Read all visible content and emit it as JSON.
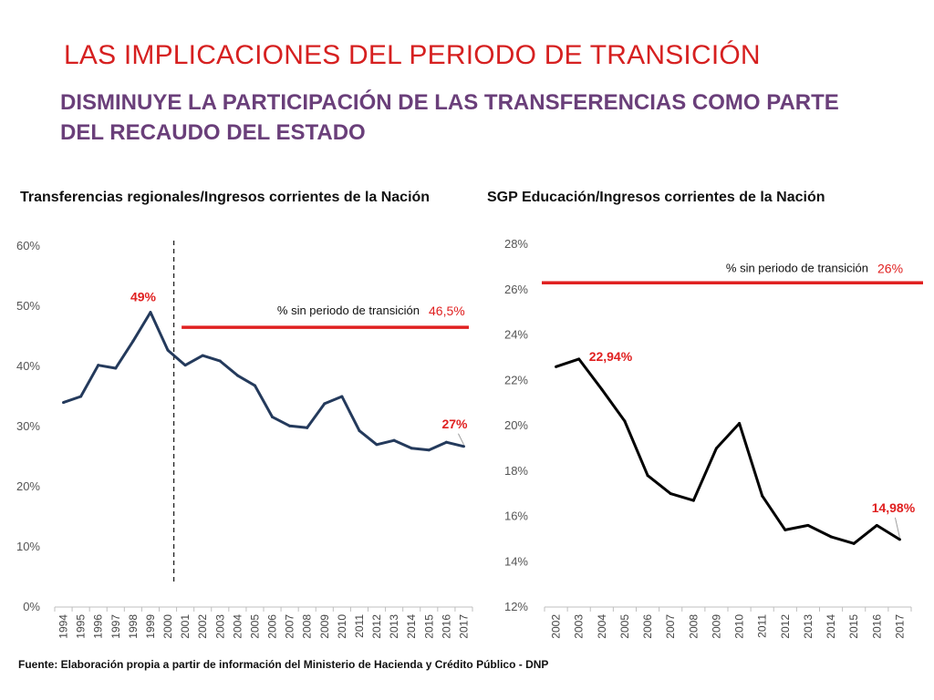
{
  "slide": {
    "title": "LAS IMPLICACIONES DEL PERIODO DE TRANSICIÓN",
    "subtitle": "DISMINUYE LA PARTICIPACIÓN DE LAS TRANSFERENCIAS COMO PARTE DEL RECAUDO DEL ESTADO",
    "source": "Fuente: Elaboración propia a partir de información del Ministerio de Hacienda y Crédito Público - DNP",
    "colors": {
      "title": "#d62020",
      "subtitle": "#6a3f7a",
      "reference_line": "#e02020"
    }
  },
  "chart_data": [
    {
      "type": "line",
      "title": "Transferencias regionales/Ingresos corrientes de la Nación",
      "line_color": "#243a5c",
      "categories": [
        "1994",
        "1995",
        "1996",
        "1997",
        "1998",
        "1999",
        "2000",
        "2001",
        "2002",
        "2003",
        "2004",
        "2005",
        "2006",
        "2007",
        "2008",
        "2009",
        "2010",
        "2011",
        "2012",
        "2013",
        "2014",
        "2015",
        "2016",
        "2017"
      ],
      "values": [
        34.0,
        35.0,
        40.2,
        39.7,
        44.2,
        49.0,
        42.7,
        40.2,
        41.8,
        40.9,
        38.5,
        36.8,
        31.6,
        30.1,
        29.8,
        33.8,
        35.0,
        29.3,
        27.0,
        27.7,
        26.4,
        26.1,
        27.4,
        26.7
      ],
      "ylim": [
        0,
        60
      ],
      "yticks": [
        "0%",
        "10%",
        "20%",
        "30%",
        "40%",
        "50%",
        "60%"
      ],
      "reference": {
        "label": "% sin periodo de transición",
        "value_label": "46,5%",
        "value": 46.5,
        "from_category": "2001"
      },
      "divider_category": "2001",
      "annotations": [
        {
          "text": "49%",
          "category": "1999"
        },
        {
          "text": "27%",
          "category": "2017"
        }
      ]
    },
    {
      "type": "line",
      "title": "SGP Educación/Ingresos corrientes de la Nación",
      "line_color": "#000000",
      "categories": [
        "2002",
        "2003",
        "2004",
        "2005",
        "2006",
        "2007",
        "2008",
        "2009",
        "2010",
        "2011",
        "2012",
        "2013",
        "2014",
        "2015",
        "2016",
        "2017"
      ],
      "values": [
        22.6,
        22.94,
        21.6,
        20.2,
        17.8,
        17.0,
        16.7,
        19.0,
        20.1,
        16.9,
        15.4,
        15.6,
        15.1,
        14.8,
        15.6,
        14.98
      ],
      "ylim": [
        12,
        28
      ],
      "yticks": [
        "12%",
        "14%",
        "16%",
        "18%",
        "20%",
        "22%",
        "24%",
        "26%",
        "28%"
      ],
      "reference": {
        "label": "% sin periodo de transición",
        "value_label": "26%",
        "value": 26.3
      },
      "annotations": [
        {
          "text": "22,94%",
          "category": "2003"
        },
        {
          "text": "14,98%",
          "category": "2017"
        }
      ]
    }
  ]
}
